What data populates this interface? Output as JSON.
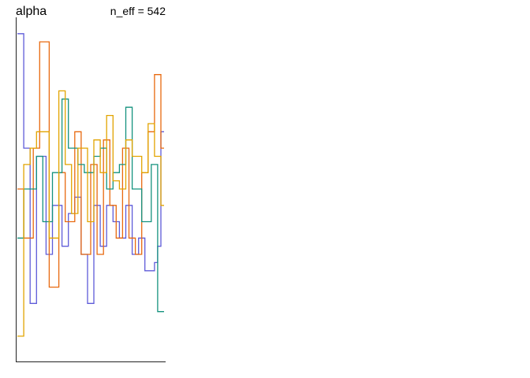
{
  "chart_data": {
    "type": "line",
    "title": "alpha",
    "annotation": "n_eff = 542",
    "xlabel": "",
    "ylabel": "",
    "x": [
      1,
      2,
      3,
      4,
      5,
      6,
      7,
      8,
      9,
      10,
      11,
      12,
      13,
      14,
      15,
      16,
      17,
      18,
      19,
      20,
      21,
      22,
      23,
      24,
      25,
      26,
      27,
      28,
      29,
      30,
      31,
      32,
      33,
      34,
      35,
      36,
      37,
      38,
      39,
      40,
      41,
      42,
      43,
      44,
      45,
      46
    ],
    "xlim": [
      0.5,
      46.5
    ],
    "ylim": [
      -1.05,
      1.05
    ],
    "axis_ticks_shown": false,
    "grid": false,
    "legend": "none",
    "step_style": "stairs",
    "series": [
      {
        "color": "#5e5bd9",
        "values": [
          0.95,
          0.95,
          0.25,
          0.25,
          -0.7,
          -0.7,
          0.2,
          0.2,
          0.2,
          -0.4,
          -0.4,
          -0.1,
          -0.1,
          -0.1,
          -0.35,
          -0.35,
          -0.15,
          -0.15,
          -0.05,
          -0.05,
          -0.4,
          -0.4,
          -0.7,
          -0.7,
          -0.1,
          -0.1,
          -0.35,
          -0.35,
          -0.1,
          -0.1,
          -0.2,
          -0.2,
          -0.3,
          -0.3,
          -0.1,
          -0.1,
          -0.4,
          -0.4,
          -0.3,
          -0.3,
          -0.5,
          -0.5,
          -0.5,
          -0.45,
          -0.35,
          0.35
        ]
      },
      {
        "color": "#e8690f",
        "values": [
          0.0,
          0.0,
          -0.3,
          -0.3,
          -0.3,
          0.25,
          0.25,
          0.9,
          0.9,
          0.9,
          -0.6,
          -0.6,
          -0.6,
          0.1,
          0.1,
          -0.2,
          -0.2,
          -0.2,
          0.35,
          0.35,
          -0.4,
          -0.4,
          -0.4,
          0.15,
          0.15,
          -0.4,
          -0.4,
          0.3,
          0.3,
          -0.1,
          -0.1,
          -0.3,
          -0.3,
          0.25,
          0.25,
          -0.3,
          -0.3,
          -0.4,
          -0.4,
          0.1,
          0.1,
          0.35,
          0.35,
          0.7,
          0.7,
          0.25
        ]
      },
      {
        "color": "#14927e",
        "values": [
          -0.3,
          -0.3,
          0.0,
          0.0,
          0.0,
          0.0,
          0.2,
          0.2,
          -0.2,
          -0.2,
          -0.2,
          0.1,
          0.1,
          0.1,
          0.55,
          0.55,
          0.25,
          0.25,
          0.25,
          0.15,
          0.15,
          0.1,
          0.1,
          0.1,
          0.2,
          0.2,
          0.25,
          0.25,
          0.0,
          0.0,
          0.1,
          0.1,
          0.15,
          0.15,
          0.5,
          0.5,
          0.0,
          0.0,
          0.0,
          -0.2,
          -0.2,
          -0.2,
          0.15,
          0.15,
          -0.75,
          -0.75
        ]
      },
      {
        "color": "#e2a400",
        "values": [
          -0.9,
          -0.9,
          0.15,
          0.15,
          0.25,
          0.25,
          0.35,
          0.35,
          0.35,
          0.35,
          -0.3,
          -0.3,
          -0.3,
          0.6,
          0.6,
          0.15,
          0.15,
          -0.15,
          -0.15,
          0.25,
          0.25,
          0.25,
          -0.2,
          -0.2,
          0.3,
          0.3,
          0.1,
          0.1,
          0.45,
          0.45,
          0.05,
          0.05,
          0.0,
          0.0,
          0.3,
          0.3,
          0.2,
          0.2,
          0.2,
          0.1,
          0.1,
          0.4,
          0.4,
          0.2,
          0.2,
          -0.1
        ]
      }
    ]
  }
}
